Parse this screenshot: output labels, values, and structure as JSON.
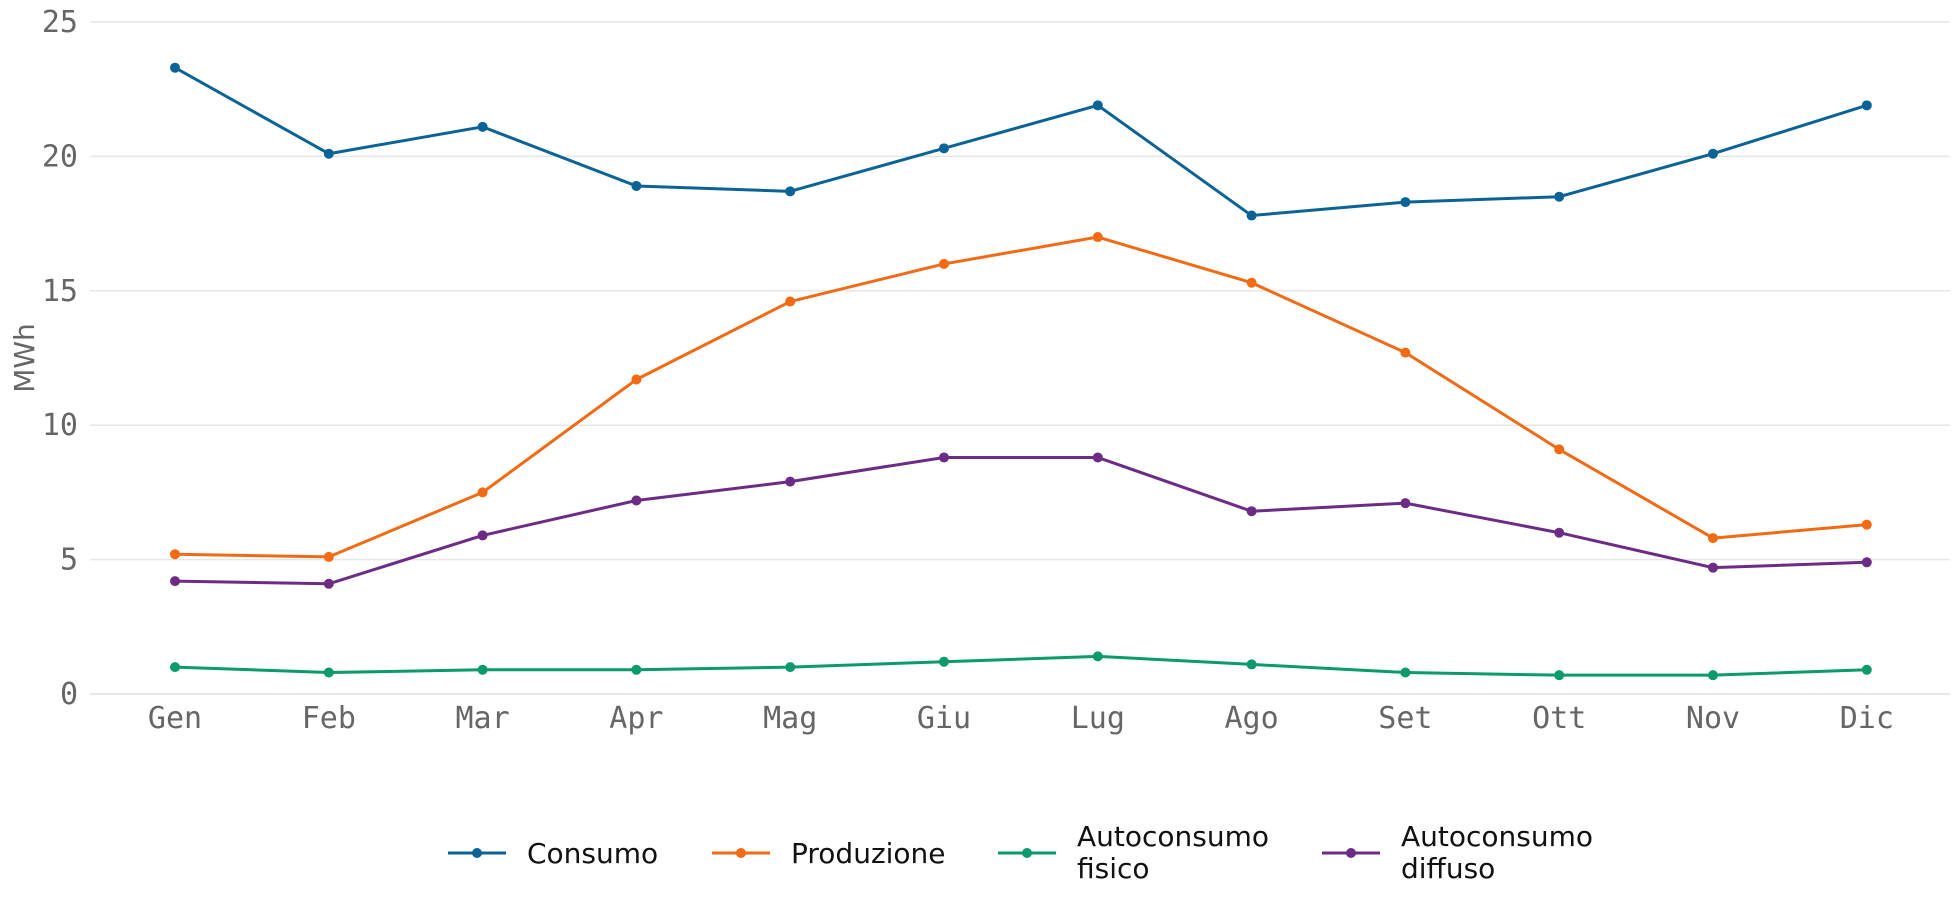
{
  "chart_data": {
    "type": "line",
    "title": "",
    "xlabel": "",
    "ylabel": "MWh",
    "categories": [
      "Gen",
      "Feb",
      "Mar",
      "Apr",
      "Mag",
      "Giu",
      "Lug",
      "Ago",
      "Set",
      "Ott",
      "Nov",
      "Dic"
    ],
    "ylim": [
      0,
      25
    ],
    "yticks": [
      "0",
      "5",
      "10",
      "15",
      "20",
      "25"
    ],
    "grid": "horizontal",
    "legend_position": "bottom-center",
    "series": [
      {
        "name": "Consumo",
        "color": "#0a6396",
        "values": [
          23.3,
          20.1,
          21.1,
          18.9,
          18.7,
          20.3,
          21.9,
          17.8,
          18.3,
          18.5,
          20.1,
          21.9
        ]
      },
      {
        "name": "Produzione",
        "color": "#f26a13",
        "values": [
          5.2,
          5.1,
          7.5,
          11.7,
          14.6,
          16.0,
          17.0,
          15.3,
          12.7,
          9.1,
          5.8,
          6.3
        ]
      },
      {
        "name": "Autoconsumo\nfisico",
        "color": "#0a9a6b",
        "values": [
          1.0,
          0.8,
          0.9,
          0.9,
          1.0,
          1.2,
          1.4,
          1.1,
          0.8,
          0.7,
          0.7,
          0.9
        ]
      },
      {
        "name": "Autoconsumo\ndiffuso",
        "color": "#6c2c86",
        "values": [
          4.2,
          4.1,
          5.9,
          7.2,
          7.9,
          8.8,
          8.8,
          6.8,
          7.1,
          6.0,
          4.7,
          4.9
        ]
      }
    ]
  }
}
